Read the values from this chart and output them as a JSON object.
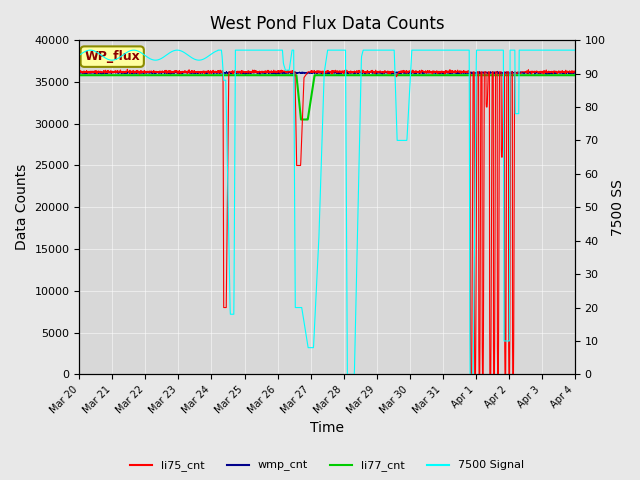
{
  "title": "West Pond Flux Data Counts",
  "xlabel": "Time",
  "ylabel_left": "Data Counts",
  "ylabel_right": "7500 SS",
  "ylim_left": [
    0,
    40000
  ],
  "ylim_right": [
    0,
    100
  ],
  "bg_color": "#e8e8e8",
  "plot_bg_color": "#d8d8d8",
  "wp_flux_label": "WP_flux",
  "wp_flux_box_color": "#ffffa0",
  "wp_flux_text_color": "#8b0000",
  "legend_entries": [
    "li75_cnt",
    "wmp_cnt",
    "li77_cnt",
    "7500 Signal"
  ],
  "legend_colors": [
    "#ff0000",
    "#00008b",
    "#00cc00",
    "#00ffff"
  ],
  "x_labels": [
    "Mar 20",
    "Mar 21",
    "Mar 22",
    "Mar 23",
    "Mar 24",
    "Mar 25",
    "Mar 26",
    "Mar 27",
    "Mar 28",
    "Mar 29",
    "Mar 30",
    "Mar 31",
    "Apr 1",
    "Apr 2",
    "Apr 3",
    "Apr 4"
  ]
}
